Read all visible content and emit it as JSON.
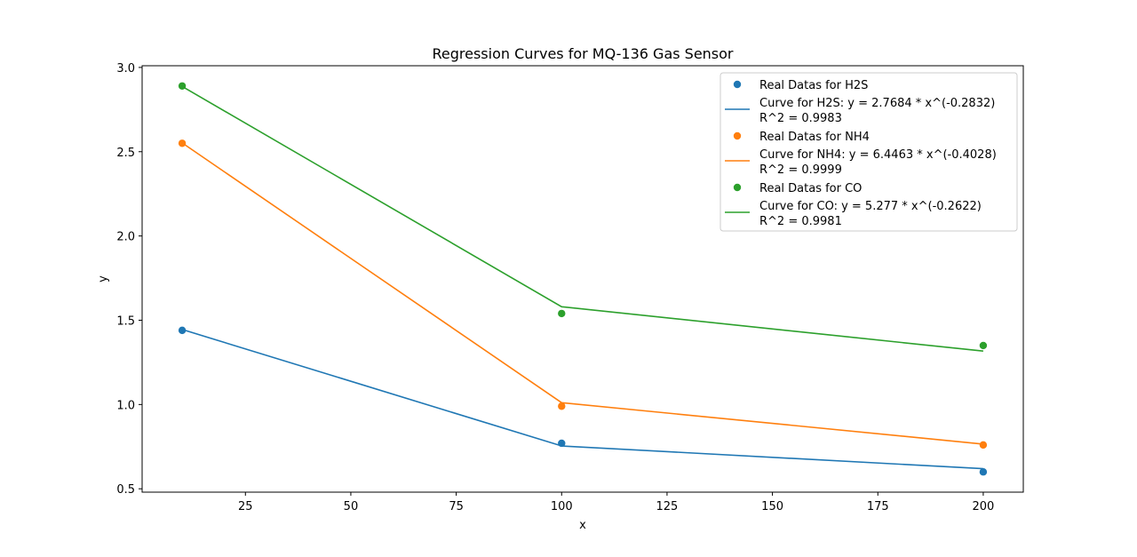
{
  "chart_data": {
    "type": "scatter",
    "title": "Regression Curves for MQ-136 Gas Sensor",
    "xlabel": "x",
    "ylabel": "y",
    "xlim": [
      0.5,
      209.5
    ],
    "ylim": [
      0.48,
      3.01
    ],
    "x_ticks": [
      25,
      50,
      75,
      100,
      125,
      150,
      175,
      200
    ],
    "y_ticks": [
      0.5,
      1.0,
      1.5,
      2.0,
      2.5,
      3.0
    ],
    "x_tick_labels": [
      "25",
      "50",
      "75",
      "100",
      "125",
      "150",
      "175",
      "200"
    ],
    "y_tick_labels": [
      "0.5",
      "1.0",
      "1.5",
      "2.0",
      "2.5",
      "3.0"
    ],
    "grid": false,
    "legend_position": "upper-right",
    "series": [
      {
        "name": "Real Datas for H2S",
        "kind": "scatter",
        "color": "#1f77b4",
        "x": [
          10,
          100,
          200
        ],
        "y": [
          1.44,
          0.77,
          0.6
        ]
      },
      {
        "name": "Curve for H2S: y = 2.7684 * x^(-0.2832)",
        "name_line2": "R^2 = 0.9983",
        "kind": "line",
        "color": "#1f77b4",
        "x": [
          10,
          100,
          200
        ],
        "y": [
          1.445,
          0.754,
          0.619
        ]
      },
      {
        "name": "Real Datas for NH4",
        "kind": "scatter",
        "color": "#ff7f0e",
        "x": [
          10,
          100,
          200
        ],
        "y": [
          2.55,
          0.99,
          0.76
        ]
      },
      {
        "name": "Curve for NH4: y = 6.4463 * x^(-0.4028)",
        "name_line2": "R^2 = 0.9999",
        "kind": "line",
        "color": "#ff7f0e",
        "x": [
          10,
          100,
          200
        ],
        "y": [
          2.552,
          1.011,
          0.765
        ]
      },
      {
        "name": "Real Datas for CO",
        "kind": "scatter",
        "color": "#2ca02c",
        "x": [
          10,
          100,
          200
        ],
        "y": [
          2.89,
          1.54,
          1.35
        ]
      },
      {
        "name": "Curve for CO: y = 5.277 * x^(-0.2622)",
        "name_line2": "R^2 = 0.9981",
        "kind": "line",
        "color": "#2ca02c",
        "x": [
          10,
          100,
          200
        ],
        "y": [
          2.887,
          1.58,
          1.317
        ]
      }
    ]
  }
}
